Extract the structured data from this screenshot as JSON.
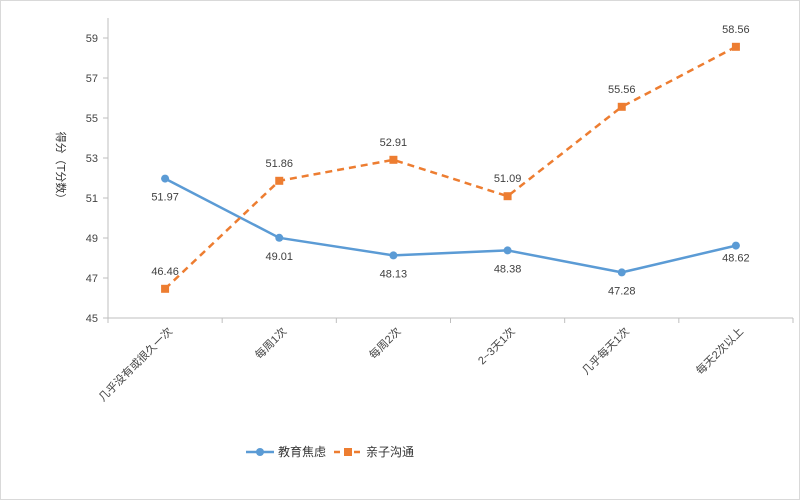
{
  "chart_data": {
    "type": "line",
    "categories": [
      "几乎没有或很久一次",
      "每周1次",
      "每周2次",
      "2~3天1次",
      "几乎每天1次",
      "每天2次以上"
    ],
    "series": [
      {
        "name": "教育焦虑",
        "values": [
          51.97,
          49.01,
          48.13,
          48.38,
          47.28,
          48.62
        ],
        "color": "#5b9bd5",
        "style": "solid"
      },
      {
        "name": "亲子沟通",
        "values": [
          46.46,
          51.86,
          52.91,
          51.09,
          55.56,
          58.56
        ],
        "color": "#ed7d31",
        "style": "dashed"
      }
    ],
    "value_labels": [
      [
        "51.97",
        "49.01",
        "48.13",
        "48.38",
        "47.28",
        "48.62"
      ],
      [
        "46.46",
        "51.86",
        "52.91",
        "51.09",
        "55.56",
        "58.56"
      ]
    ],
    "ylabel": "得分（T分数）",
    "ylim": [
      45,
      60
    ],
    "yticks": [
      "45",
      "47",
      "49",
      "51",
      "53",
      "55",
      "57",
      "59"
    ],
    "grid": false,
    "legend_position": "bottom-center"
  }
}
